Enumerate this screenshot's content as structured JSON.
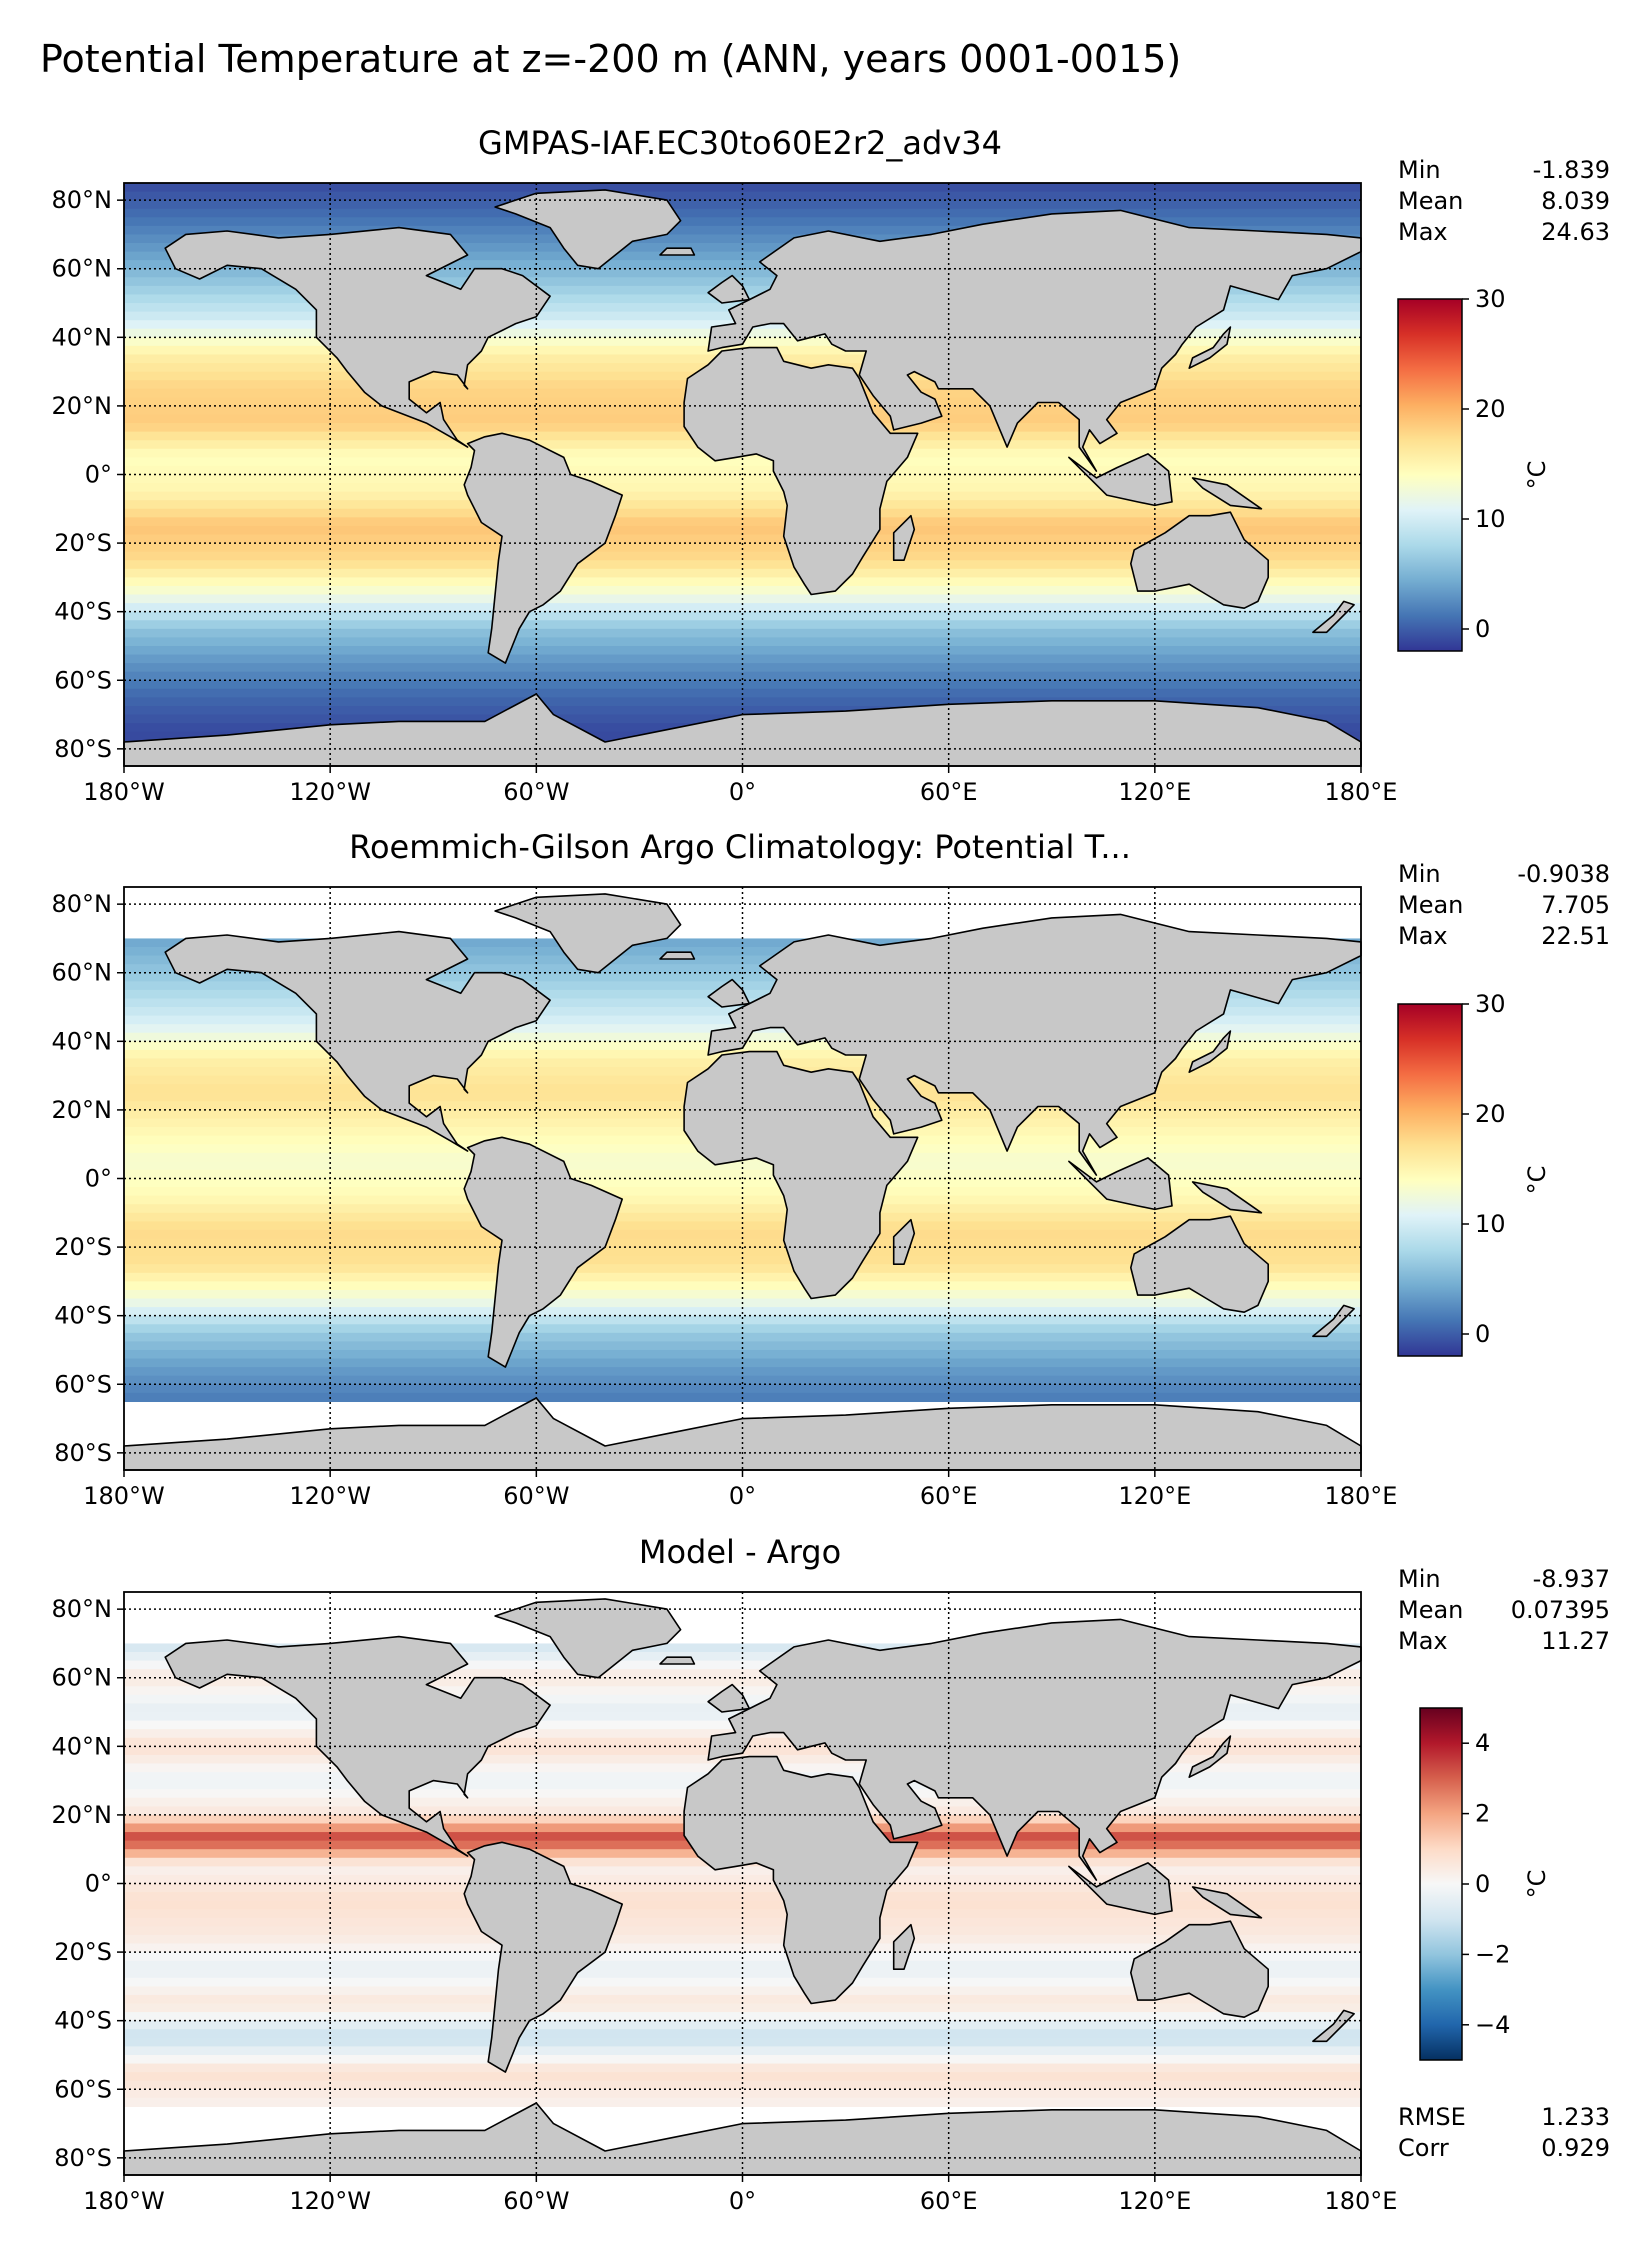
{
  "title": "Potential Temperature at z=-200 m (ANN, years 0001-0015)",
  "chart_data": [
    {
      "type": "heatmap",
      "title": "GMPAS-IAF.EC30to60E2r2_adv34",
      "projection": "equirectangular",
      "xlim": [
        -180,
        180
      ],
      "ylim": [
        -85,
        85
      ],
      "xticks": [
        -180,
        -120,
        -60,
        0,
        60,
        120,
        180
      ],
      "xtick_labels": [
        "180°W",
        "120°W",
        "60°W",
        "0°",
        "60°E",
        "120°E",
        "180°E"
      ],
      "yticks": [
        80,
        60,
        40,
        20,
        0,
        -20,
        -40,
        -60,
        -80
      ],
      "ytick_labels": [
        "80°N",
        "60°N",
        "40°N",
        "20°N",
        "0°",
        "20°S",
        "40°S",
        "60°S",
        "80°S"
      ],
      "grid": true,
      "colormap": "RdYlBu_r",
      "colorbar": {
        "label": "°C",
        "range": [
          -2,
          30
        ],
        "ticks": [
          0,
          10,
          20,
          30
        ],
        "tick_labels": [
          "0",
          "10",
          "20",
          "30"
        ]
      },
      "stats": [
        {
          "label": "Min",
          "value": "-1.839"
        },
        {
          "label": "Mean",
          "value": "8.039"
        },
        {
          "label": "Max",
          "value": "24.63"
        }
      ],
      "zonal_pattern": {
        "lat": [
          85,
          75,
          65,
          55,
          45,
          35,
          25,
          15,
          5,
          -5,
          -15,
          -25,
          -35,
          -45,
          -55,
          -65,
          -75
        ],
        "value": [
          -1.0,
          1.0,
          3.5,
          6.5,
          10.0,
          15.5,
          18.0,
          18.5,
          14.0,
          15.0,
          19.0,
          17.5,
          12.5,
          6.0,
          3.0,
          0.5,
          -1.0
        ]
      }
    },
    {
      "type": "heatmap",
      "title": "Roemmich-Gilson Argo Climatology: Potential T...",
      "projection": "equirectangular",
      "xlim": [
        -180,
        180
      ],
      "ylim": [
        -85,
        85
      ],
      "xticks": [
        -180,
        -120,
        -60,
        0,
        60,
        120,
        180
      ],
      "xtick_labels": [
        "180°W",
        "120°W",
        "60°W",
        "0°",
        "60°E",
        "120°E",
        "180°E"
      ],
      "yticks": [
        80,
        60,
        40,
        20,
        0,
        -20,
        -40,
        -60,
        -80
      ],
      "ytick_labels": [
        "80°N",
        "60°N",
        "40°N",
        "20°N",
        "0°",
        "20°S",
        "40°S",
        "60°S",
        "80°S"
      ],
      "grid": true,
      "colormap": "RdYlBu_r",
      "colorbar": {
        "label": "°C",
        "range": [
          -2,
          30
        ],
        "ticks": [
          0,
          10,
          20,
          30
        ],
        "tick_labels": [
          "0",
          "10",
          "20",
          "30"
        ]
      },
      "stats": [
        {
          "label": "Min",
          "value": "-0.9038"
        },
        {
          "label": "Mean",
          "value": "7.705"
        },
        {
          "label": "Max",
          "value": "22.51"
        }
      ],
      "data_lat_range": [
        -65,
        70
      ],
      "zonal_pattern": {
        "lat": [
          70,
          65,
          55,
          45,
          35,
          25,
          15,
          5,
          -5,
          -15,
          -25,
          -35,
          -45,
          -55,
          -65
        ],
        "value": [
          4.0,
          5.0,
          7.5,
          10.5,
          15.5,
          17.0,
          15.0,
          13.0,
          14.5,
          17.5,
          17.0,
          12.5,
          6.5,
          3.5,
          1.5
        ]
      }
    },
    {
      "type": "heatmap",
      "title": "Model - Argo",
      "projection": "equirectangular",
      "xlim": [
        -180,
        180
      ],
      "ylim": [
        -85,
        85
      ],
      "xticks": [
        -180,
        -120,
        -60,
        0,
        60,
        120,
        180
      ],
      "xtick_labels": [
        "180°W",
        "120°W",
        "60°W",
        "0°",
        "60°E",
        "120°E",
        "180°E"
      ],
      "yticks": [
        80,
        60,
        40,
        20,
        0,
        -20,
        -40,
        -60,
        -80
      ],
      "ytick_labels": [
        "80°N",
        "60°N",
        "40°N",
        "20°N",
        "0°",
        "20°S",
        "40°S",
        "60°S",
        "80°S"
      ],
      "grid": true,
      "colormap": "RdBu_r",
      "colorbar": {
        "label": "°C",
        "range": [
          -5,
          5
        ],
        "ticks": [
          4,
          2,
          0,
          -2,
          -4
        ],
        "tick_labels": [
          "4",
          "2",
          "0",
          "−2",
          "−4"
        ]
      },
      "stats": [
        {
          "label": "Min",
          "value": "-8.937"
        },
        {
          "label": "Mean",
          "value": "0.07395"
        },
        {
          "label": "Max",
          "value": "11.27"
        }
      ],
      "metrics": [
        {
          "label": "RMSE",
          "value": "1.233"
        },
        {
          "label": "Corr",
          "value": "0.929"
        }
      ],
      "data_lat_range": [
        -65,
        70
      ],
      "zonal_pattern": {
        "lat": [
          70,
          60,
          50,
          40,
          30,
          20,
          13,
          5,
          -5,
          -15,
          -25,
          -35,
          -45,
          -55,
          -65
        ],
        "value": [
          -1.0,
          0.5,
          -0.5,
          0.8,
          -0.3,
          0.6,
          3.5,
          0.2,
          0.8,
          0.5,
          -0.4,
          0.6,
          -1.2,
          0.8,
          0.2
        ]
      }
    }
  ]
}
